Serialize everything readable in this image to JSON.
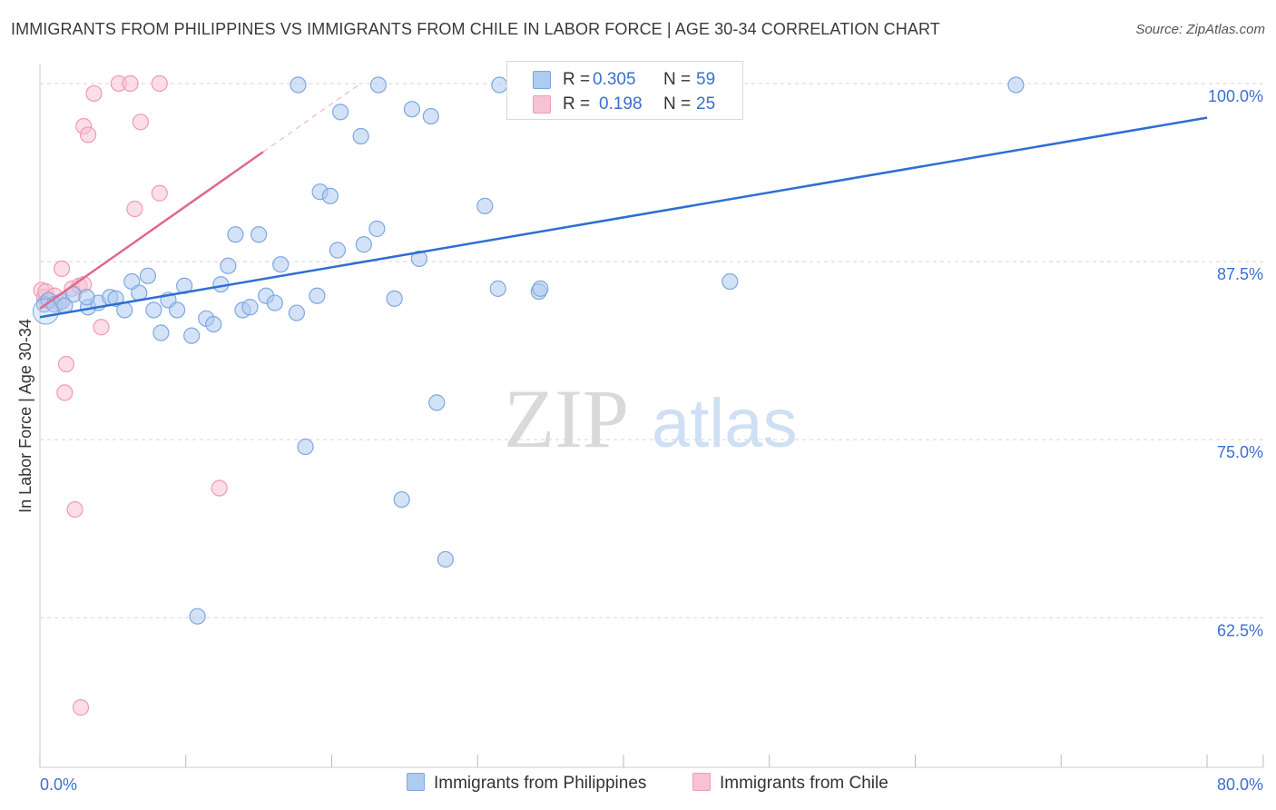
{
  "header": {
    "title": "IMMIGRANTS FROM PHILIPPINES VS IMMIGRANTS FROM CHILE IN LABOR FORCE | AGE 30-34 CORRELATION CHART",
    "source": "Source: ZipAtlas.com"
  },
  "watermark": {
    "zip": "ZIP",
    "atlas": "atlas"
  },
  "colors": {
    "philippines_fill": "#aecbf0",
    "philippines_stroke": "#7ea7e0",
    "philippines_line": "#2d6fd2",
    "chile_fill": "#f7c3d2",
    "chile_stroke": "#ee9bb4",
    "chile_line": "#e0678f",
    "axis_text": "#3a6fd0",
    "grid": "#d5d5d5"
  },
  "legend": {
    "rows": [
      {
        "r_label": "R = ",
        "r_value": "0.305",
        "n_label": "N = ",
        "n_value": "59"
      },
      {
        "r_label": "R = ",
        "r_value": "0.198",
        "n_label": "N = ",
        "n_value": "25"
      }
    ]
  },
  "bottom_legend": {
    "philippines": "Immigrants from Philippines",
    "chile": "Immigrants from Chile"
  },
  "chart_data": {
    "type": "scatter",
    "title": "IMMIGRANTS FROM PHILIPPINES VS IMMIGRANTS FROM CHILE IN LABOR FORCE | AGE 30-34 CORRELATION CHART",
    "xlabel": "",
    "ylabel": "In Labor Force | Age 30-34",
    "xlim": [
      0,
      80
    ],
    "ylim": [
      52,
      101.4
    ],
    "x_tick_labels": [
      "0.0%",
      "80.0%"
    ],
    "y_ticks": [
      {
        "value": 100.0,
        "label": "100.0%"
      },
      {
        "value": 87.5,
        "label": "87.5%"
      },
      {
        "value": 75.0,
        "label": "75.0%"
      },
      {
        "value": 62.5,
        "label": "62.5%"
      }
    ],
    "series": [
      {
        "name": "Immigrants from Philippines",
        "r": 0.305,
        "n": 59,
        "trend": {
          "x": [
            0,
            80
          ],
          "y": [
            83.6,
            97.6
          ]
        },
        "points": [
          [
            0.3,
            84.5
          ],
          [
            0.6,
            84.8
          ],
          [
            1.0,
            84.5
          ],
          [
            1.5,
            84.7
          ],
          [
            2.3,
            85.2
          ],
          [
            3.3,
            84.3
          ],
          [
            4.0,
            84.6
          ],
          [
            4.8,
            85.0
          ],
          [
            5.2,
            84.9
          ],
          [
            5.8,
            84.1
          ],
          [
            6.3,
            86.1
          ],
          [
            6.8,
            85.3
          ],
          [
            7.4,
            86.5
          ],
          [
            7.8,
            84.1
          ],
          [
            8.3,
            82.5
          ],
          [
            8.8,
            84.8
          ],
          [
            9.4,
            84.1
          ],
          [
            9.9,
            85.8
          ],
          [
            10.4,
            82.3
          ],
          [
            11.4,
            83.5
          ],
          [
            11.9,
            83.1
          ],
          [
            12.4,
            85.9
          ],
          [
            12.9,
            87.2
          ],
          [
            13.4,
            89.4
          ],
          [
            13.9,
            84.1
          ],
          [
            14.4,
            84.3
          ],
          [
            15.0,
            89.4
          ],
          [
            15.5,
            85.1
          ],
          [
            16.1,
            84.6
          ],
          [
            16.5,
            87.3
          ],
          [
            17.6,
            83.9
          ],
          [
            17.7,
            99.9
          ],
          [
            18.2,
            74.5
          ],
          [
            19.0,
            85.1
          ],
          [
            19.2,
            92.4
          ],
          [
            19.9,
            92.1
          ],
          [
            20.4,
            88.3
          ],
          [
            20.6,
            98.0
          ],
          [
            22.0,
            96.3
          ],
          [
            22.2,
            88.7
          ],
          [
            23.1,
            89.8
          ],
          [
            23.2,
            99.9
          ],
          [
            24.3,
            84.9
          ],
          [
            24.8,
            70.8
          ],
          [
            25.5,
            98.2
          ],
          [
            26.0,
            87.7
          ],
          [
            26.8,
            97.7
          ],
          [
            27.2,
            77.6
          ],
          [
            27.8,
            66.6
          ],
          [
            30.5,
            91.4
          ],
          [
            31.4,
            85.6
          ],
          [
            31.5,
            99.9
          ],
          [
            34.2,
            85.4
          ],
          [
            34.3,
            85.6
          ],
          [
            47.3,
            86.1
          ],
          [
            66.9,
            99.9
          ],
          [
            10.8,
            62.6
          ],
          [
            1.7,
            84.4
          ],
          [
            3.2,
            85.0
          ]
        ]
      },
      {
        "name": "Immigrants from Chile",
        "r": 0.198,
        "n": 25,
        "trend": {
          "x": [
            0,
            15.3
          ],
          "y": [
            84.2,
            95.2
          ],
          "dashed_extension_x": [
            15.3,
            22.0
          ]
        },
        "points": [
          [
            0.1,
            85.5
          ],
          [
            0.3,
            85.0
          ],
          [
            0.4,
            85.4
          ],
          [
            0.6,
            84.7
          ],
          [
            1.0,
            85.1
          ],
          [
            1.3,
            84.6
          ],
          [
            1.5,
            87.0
          ],
          [
            1.8,
            80.3
          ],
          [
            1.7,
            78.3
          ],
          [
            2.2,
            85.6
          ],
          [
            2.4,
            70.1
          ],
          [
            2.8,
            56.2
          ],
          [
            3.0,
            97.0
          ],
          [
            3.3,
            96.4
          ],
          [
            3.7,
            99.3
          ],
          [
            4.2,
            82.9
          ],
          [
            5.4,
            100.0
          ],
          [
            6.2,
            100.0
          ],
          [
            6.5,
            91.2
          ],
          [
            6.9,
            97.3
          ],
          [
            8.2,
            92.3
          ],
          [
            8.2,
            100.0
          ],
          [
            12.3,
            71.6
          ],
          [
            2.7,
            85.8
          ],
          [
            3.0,
            85.9
          ]
        ]
      }
    ]
  }
}
